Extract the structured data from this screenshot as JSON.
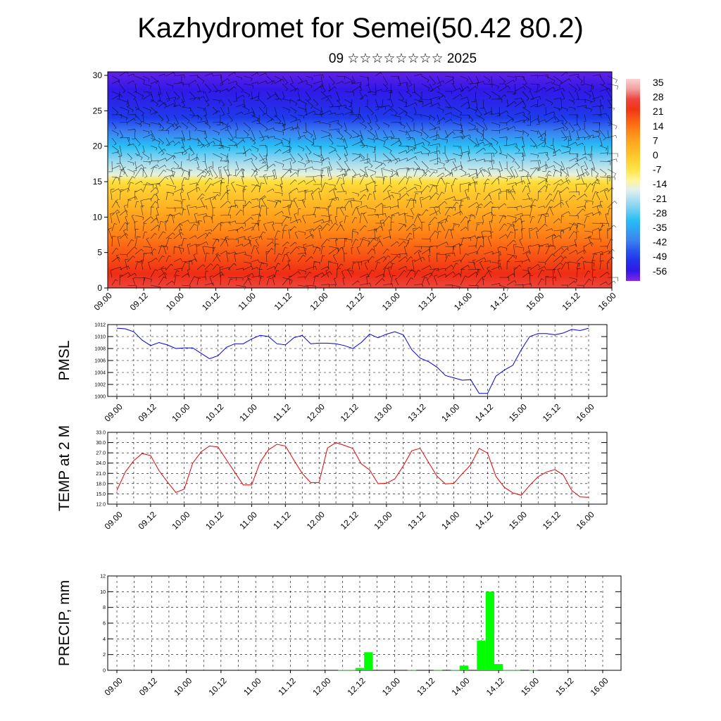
{
  "title": "Kazhydromet for Semei(50.42 80.2)",
  "subtitle": "09 ☆☆☆☆☆☆☆☆ 2025",
  "time_labels": [
    "09.00",
    "09.12",
    "10.00",
    "10.12",
    "11.00",
    "11.12",
    "12.00",
    "12.12",
    "13.00",
    "13.12",
    "14.00",
    "14.12",
    "15.00",
    "15.12",
    "16.00"
  ],
  "colors": {
    "pmsl_line": "#0000e6",
    "temp_line": "#e60000",
    "precip_bar": "#00ff00",
    "grid": "#000000"
  },
  "chart_data": [
    {
      "type": "heatmap",
      "title": "",
      "xlabel": "",
      "ylabel": "",
      "x_ticks": [
        "09.00",
        "09.12",
        "10.00",
        "10.12",
        "11.00",
        "11.12",
        "12.00",
        "12.12",
        "13.00",
        "13.12",
        "14.00",
        "14.12",
        "15.00",
        "15.12",
        "16.00"
      ],
      "y_ticks": [
        0,
        5,
        10,
        15,
        20,
        25,
        30
      ],
      "ylim": [
        0,
        30.5
      ],
      "colorbar_labels": [
        "35",
        "28",
        "21",
        "14",
        "7",
        "0",
        "-7",
        "-14",
        "-21",
        "-28",
        "-35",
        "-42",
        "-49",
        "-56"
      ],
      "colorbar_range": [
        -60,
        40
      ],
      "temperature_profile": {
        "heights": [
          0,
          2,
          4,
          6,
          8,
          10,
          12,
          14,
          15,
          16,
          18,
          20,
          22,
          24,
          26,
          28,
          30
        ],
        "values": [
          30,
          26,
          22,
          18,
          14,
          10,
          5,
          0,
          -4,
          -14,
          -22,
          -30,
          -40,
          -48,
          -52,
          -55,
          -58
        ]
      },
      "overlay": "wind barbs"
    },
    {
      "type": "line",
      "ylabel": "PMSL",
      "ylim": [
        1000,
        1012
      ],
      "y_ticks": [
        "1000",
        "1002",
        "1004",
        "1006",
        "1008",
        "1010",
        "1012"
      ],
      "x_ticks": [
        "09.00",
        "09.12",
        "10.00",
        "10.12",
        "11.00",
        "11.12",
        "12.00",
        "12.12",
        "13.00",
        "13.12",
        "14.00",
        "14.12",
        "15.00",
        "15.12",
        "16.00"
      ],
      "x": [
        0,
        3,
        6,
        9,
        12,
        15,
        18,
        21,
        24,
        27,
        30,
        33,
        36,
        39,
        42,
        45,
        48,
        51,
        54,
        57,
        60,
        63,
        66,
        69,
        72,
        75,
        78,
        81,
        84,
        87,
        90,
        93,
        96,
        99,
        102,
        105,
        108,
        111,
        114,
        117,
        120,
        123,
        126,
        129,
        132,
        135,
        138,
        141,
        144,
        147,
        150,
        153,
        156,
        159,
        162,
        165,
        168
      ],
      "series": [
        {
          "values": [
            1011.4,
            1011.3,
            1010.8,
            1009.4,
            1008.5,
            1009.0,
            1008.6,
            1008.0,
            1008.1,
            1008.1,
            1007.2,
            1006.3,
            1006.8,
            1008.2,
            1008.8,
            1008.8,
            1009.6,
            1010.2,
            1010.0,
            1008.8,
            1008.6,
            1009.8,
            1010.2,
            1008.8,
            1008.9,
            1008.9,
            1008.8,
            1008.5,
            1008.0,
            1009.0,
            1010.4,
            1009.8,
            1010.4,
            1010.8,
            1010.3,
            1007.8,
            1006.4,
            1005.8,
            1004.9,
            1003.5,
            1003.1,
            1002.7,
            1002.8,
            1000.5,
            1000.5,
            1003.4,
            1004.4,
            1005.2,
            1007.8,
            1010.0,
            1010.5,
            1010.5,
            1010.3,
            1010.6,
            1011.2,
            1011.0,
            1011.4
          ]
        }
      ]
    },
    {
      "type": "line",
      "ylabel": "TEMP at 2 M",
      "ylim": [
        12,
        33
      ],
      "y_ticks": [
        "12.0",
        "15.0",
        "18.0",
        "21.0",
        "24.0",
        "27.0",
        "30.0",
        "33.0"
      ],
      "x_ticks": [
        "09.00",
        "09.12",
        "10.00",
        "10.12",
        "11.00",
        "11.12",
        "12.00",
        "12.12",
        "13.00",
        "13.12",
        "14.00",
        "14.12",
        "15.00",
        "15.12",
        "16.00"
      ],
      "x": [
        0,
        3,
        6,
        9,
        12,
        15,
        18,
        21,
        24,
        27,
        30,
        33,
        36,
        39,
        42,
        45,
        48,
        51,
        54,
        57,
        60,
        63,
        66,
        69,
        72,
        75,
        78,
        81,
        84,
        87,
        90,
        93,
        96,
        99,
        102,
        105,
        108,
        111,
        114,
        117,
        120,
        123,
        126,
        129,
        132,
        135,
        138,
        141,
        144,
        147,
        150,
        153,
        156,
        159,
        162,
        165,
        168
      ],
      "series": [
        {
          "values": [
            16.0,
            21.4,
            24.7,
            26.8,
            26.2,
            21.8,
            18.5,
            15.4,
            16.4,
            24.0,
            27.3,
            29.0,
            28.7,
            25.0,
            21.3,
            17.6,
            17.6,
            24.3,
            27.9,
            29.5,
            29.0,
            24.9,
            21.0,
            18.3,
            18.3,
            28.4,
            30.0,
            29.2,
            28.3,
            23.8,
            22.0,
            18.0,
            18.1,
            19.4,
            23.2,
            27.6,
            28.3,
            24.2,
            20.2,
            17.9,
            18.1,
            20.9,
            23.5,
            28.3,
            26.9,
            20.1,
            16.9,
            15.3,
            14.6,
            17.5,
            20.0,
            21.4,
            22.1,
            20.5,
            16.0,
            14.1,
            14.0
          ]
        }
      ]
    },
    {
      "type": "bar",
      "ylabel": "PRECIP, mm",
      "ylim": [
        0,
        12
      ],
      "y_ticks": [
        "0",
        "2",
        "4",
        "6",
        "8",
        "10",
        "12"
      ],
      "x_ticks": [
        "09.00",
        "09.12",
        "10.00",
        "10.12",
        "11.00",
        "11.12",
        "12.00",
        "12.12",
        "13.00",
        "13.12",
        "14.00",
        "14.12",
        "15.00",
        "15.12",
        "16.00"
      ],
      "x": [
        78,
        81,
        84,
        87,
        102,
        111,
        117,
        120,
        126,
        129,
        132,
        135,
        138,
        144
      ],
      "values": [
        0.05,
        0.05,
        0.3,
        2.3,
        0.05,
        0.05,
        0.05,
        0.6,
        3.8,
        10.0,
        0.8,
        0.05,
        0.05,
        0.05
      ]
    }
  ]
}
